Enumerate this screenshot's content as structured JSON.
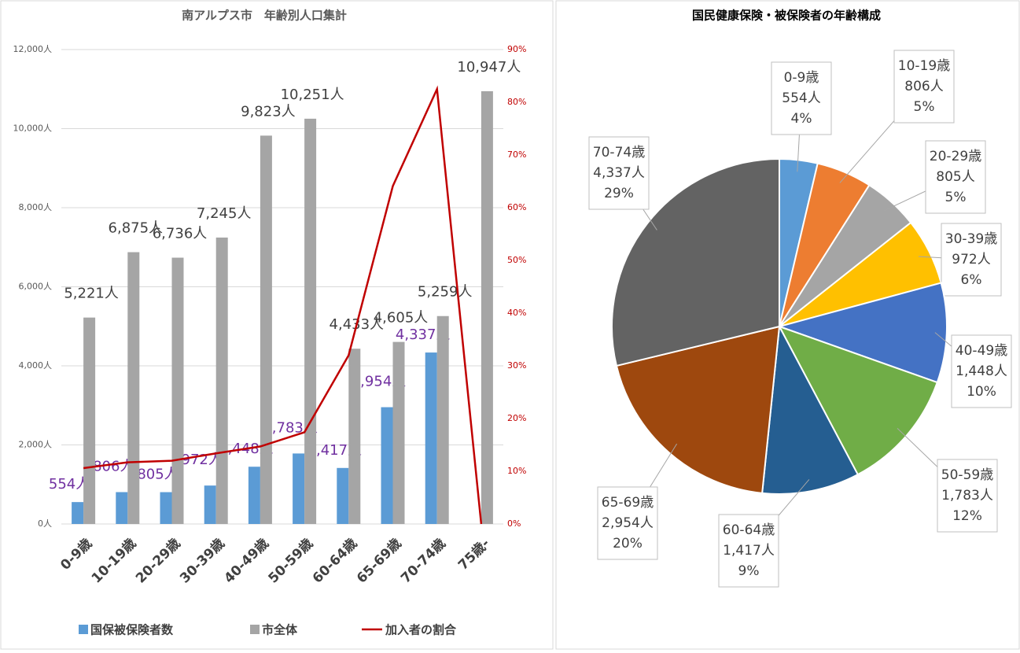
{
  "chart_data": [
    {
      "type": "combo",
      "title": "南アルプス市　年齢別人口集計",
      "categories": [
        "0-9歳",
        "10-19歳",
        "20-29歳",
        "30-39歳",
        "40-49歳",
        "50-59歳",
        "60-64歳",
        "65-69歳",
        "70-74歳",
        "75歳-"
      ],
      "series": [
        {
          "name": "国保被保険者数",
          "type": "bar",
          "color": "#5b9bd5",
          "label_color": "#7030a0",
          "values": [
            554,
            806,
            805,
            972,
            1448,
            1783,
            1417,
            2954,
            4337,
            null
          ],
          "value_labels": [
            "554人",
            "806人",
            "805人",
            "972人",
            "1,448人",
            "1,783人",
            "1,417人",
            "2,954人",
            "4,337人",
            null
          ]
        },
        {
          "name": "市全体",
          "type": "bar",
          "color": "#a5a5a5",
          "label_color": "#404040",
          "values": [
            5221,
            6875,
            6736,
            7245,
            9823,
            10251,
            4433,
            4605,
            5259,
            10947
          ],
          "value_labels": [
            "5,221人",
            "6,875人",
            "6,736人",
            "7,245人",
            "9,823人",
            "10,251人",
            "4,433人",
            "4,605人",
            "5,259人",
            "10,947人"
          ]
        },
        {
          "name": "加入者の割合",
          "type": "line",
          "axis": "y2",
          "color": "#c00000",
          "values": [
            10.6,
            11.7,
            12.0,
            13.4,
            14.7,
            17.4,
            32.0,
            64.1,
            82.5,
            0
          ]
        }
      ],
      "ylim": [
        0,
        12000
      ],
      "yticks": [
        {
          "value": 0,
          "label": "0人"
        },
        {
          "value": 2000,
          "label": "2,000人"
        },
        {
          "value": 4000,
          "label": "4,000人"
        },
        {
          "value": 6000,
          "label": "6,000人"
        },
        {
          "value": 8000,
          "label": "8,000人"
        },
        {
          "value": 10000,
          "label": "10,000人"
        },
        {
          "value": 12000,
          "label": "12,000人"
        }
      ],
      "y2lim": [
        0,
        90
      ],
      "y2ticks": [
        {
          "value": 0,
          "label": "0%"
        },
        {
          "value": 10,
          "label": "10%"
        },
        {
          "value": 20,
          "label": "20%"
        },
        {
          "value": 30,
          "label": "30%"
        },
        {
          "value": 40,
          "label": "40%"
        },
        {
          "value": 50,
          "label": "50%"
        },
        {
          "value": 60,
          "label": "60%"
        },
        {
          "value": 70,
          "label": "70%"
        },
        {
          "value": 80,
          "label": "80%"
        },
        {
          "value": 90,
          "label": "90%"
        }
      ],
      "grid": true,
      "legend": "bottom"
    },
    {
      "type": "pie",
      "title": "国民健康保険・被保険者の年齢構成",
      "categories": [
        "0-9歳",
        "10-19歳",
        "20-29歳",
        "30-39歳",
        "40-49歳",
        "50-59歳",
        "60-64歳",
        "65-69歳",
        "70-74歳"
      ],
      "values": [
        554,
        806,
        805,
        972,
        1448,
        1783,
        1417,
        2954,
        4337
      ],
      "value_labels": [
        "554人",
        "806人",
        "805人",
        "972人",
        "1,448人",
        "1,783人",
        "1,417人",
        "2,954人",
        "4,337人"
      ],
      "percents": [
        4,
        5,
        5,
        6,
        10,
        12,
        9,
        20,
        29
      ],
      "percent_labels": [
        "4%",
        "5%",
        "5%",
        "6%",
        "10%",
        "12%",
        "9%",
        "20%",
        "29%"
      ],
      "colors": [
        "#5b9bd5",
        "#ed7d31",
        "#a5a5a5",
        "#ffc000",
        "#4472c4",
        "#70ad47",
        "#255e91",
        "#9e480e",
        "#636363"
      ]
    }
  ]
}
